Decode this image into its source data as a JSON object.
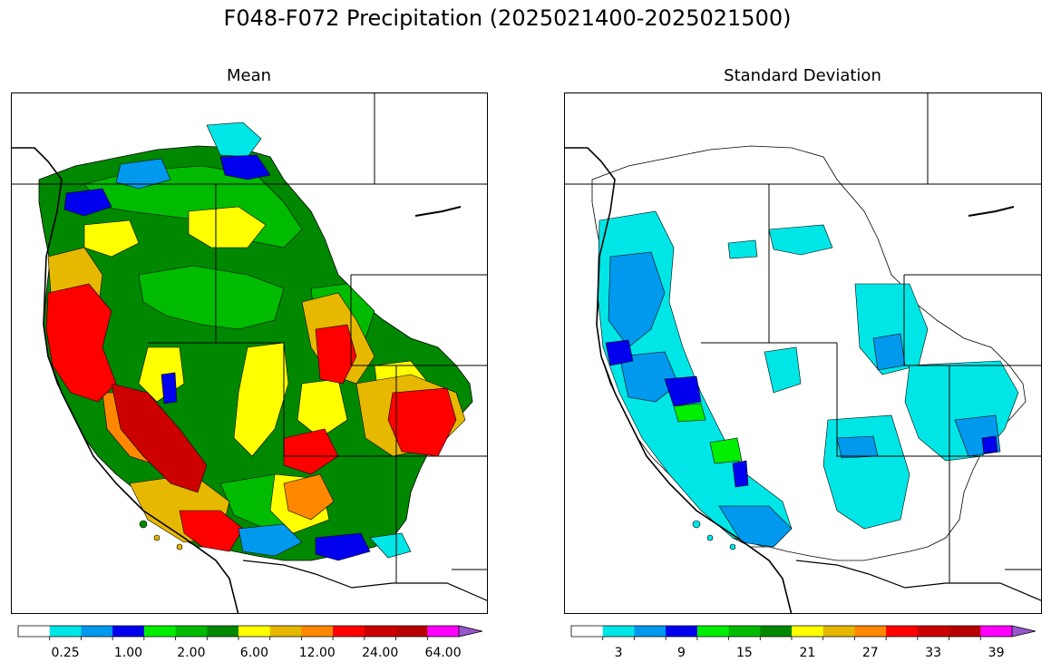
{
  "title": "F048-F072 Precipitation (2025021400-2025021500)",
  "panels": {
    "mean": {
      "title": "Mean",
      "colorbar": {
        "colors": [
          "#ffffff",
          "#00e6e6",
          "#0099ee",
          "#0000ee",
          "#00ee00",
          "#00bb00",
          "#008800",
          "#ffff00",
          "#e6b800",
          "#ff8800",
          "#ff0000",
          "#cc0000",
          "#b80000",
          "#ff00ff",
          "#9955cc"
        ],
        "tick_labels": [
          "0.25",
          "1.00",
          "2.00",
          "6.00",
          "12.00",
          "24.00",
          "64.00"
        ],
        "extend": "max"
      },
      "colors": {
        "green_dark": "#008800",
        "green": "#00bb00",
        "yellow": "#ffff00",
        "gold": "#e6b800",
        "orange": "#ff8800",
        "red": "#ff0000",
        "darkred": "#cc0000",
        "blue": "#0000ee",
        "ltblue": "#0099ee",
        "cyan": "#00e6e6",
        "white": "#ffffff"
      }
    },
    "std": {
      "title": "Standard Deviation",
      "colorbar": {
        "colors": [
          "#ffffff",
          "#00e6e6",
          "#0099ee",
          "#0000ee",
          "#00ee00",
          "#00bb00",
          "#008800",
          "#ffff00",
          "#e6b800",
          "#ff8800",
          "#ff0000",
          "#cc0000",
          "#b80000",
          "#ff00ff",
          "#9955cc"
        ],
        "tick_labels": [
          "3",
          "9",
          "15",
          "21",
          "27",
          "33",
          "39"
        ],
        "extend": "max"
      },
      "colors": {
        "cyan": "#00e6e6",
        "ltblue": "#0099ee",
        "blue": "#0000ee",
        "green": "#00ee00",
        "white": "#ffffff"
      }
    }
  }
}
